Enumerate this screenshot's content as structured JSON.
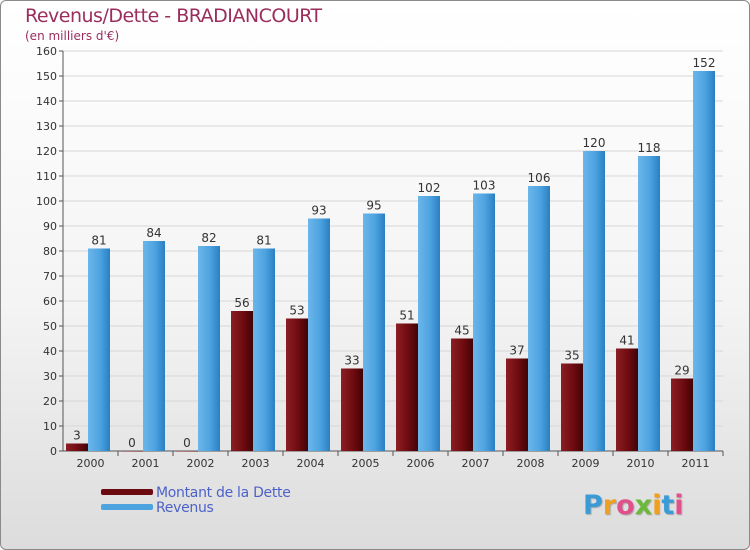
{
  "header": {
    "title": "Revenus/Dette - BRADIANCOURT",
    "subtitle": "(en milliers d'€)"
  },
  "legend": {
    "items": [
      {
        "label": "Montant de la Dette",
        "color": "#6b0a0f"
      },
      {
        "label": "Revenus",
        "color": "#4da3e0"
      }
    ]
  },
  "logo": {
    "text": "Proxiti",
    "letters": [
      {
        "ch": "P",
        "color": "#3a9bd6"
      },
      {
        "ch": "r",
        "color": "#f0a020"
      },
      {
        "ch": "o",
        "color": "#e0508a"
      },
      {
        "ch": "x",
        "color": "#6bb83a"
      },
      {
        "ch": "i",
        "color": "#f0a020"
      },
      {
        "ch": "t",
        "color": "#3a9bd6"
      },
      {
        "ch": "i",
        "color": "#e0508a"
      }
    ]
  },
  "chart_data": {
    "type": "bar",
    "title": "Revenus/Dette - BRADIANCOURT",
    "subtitle": "(en milliers d'€)",
    "categories": [
      "2000",
      "2001",
      "2002",
      "2003",
      "2004",
      "2005",
      "2006",
      "2007",
      "2008",
      "2009",
      "2010",
      "2011"
    ],
    "series": [
      {
        "name": "Montant de la Dette",
        "color": "#6b0a0f",
        "values": [
          3,
          0,
          0,
          56,
          53,
          33,
          51,
          45,
          37,
          35,
          41,
          29
        ]
      },
      {
        "name": "Revenus",
        "color": "#4da3e0",
        "values": [
          81,
          84,
          82,
          81,
          93,
          95,
          102,
          103,
          106,
          120,
          118,
          152
        ]
      }
    ],
    "ylim": [
      0,
      160
    ],
    "yticks": [
      0,
      10,
      20,
      30,
      40,
      50,
      60,
      70,
      80,
      90,
      100,
      110,
      120,
      130,
      140,
      150,
      160
    ],
    "grid": true,
    "legend_position": "bottom-left"
  }
}
